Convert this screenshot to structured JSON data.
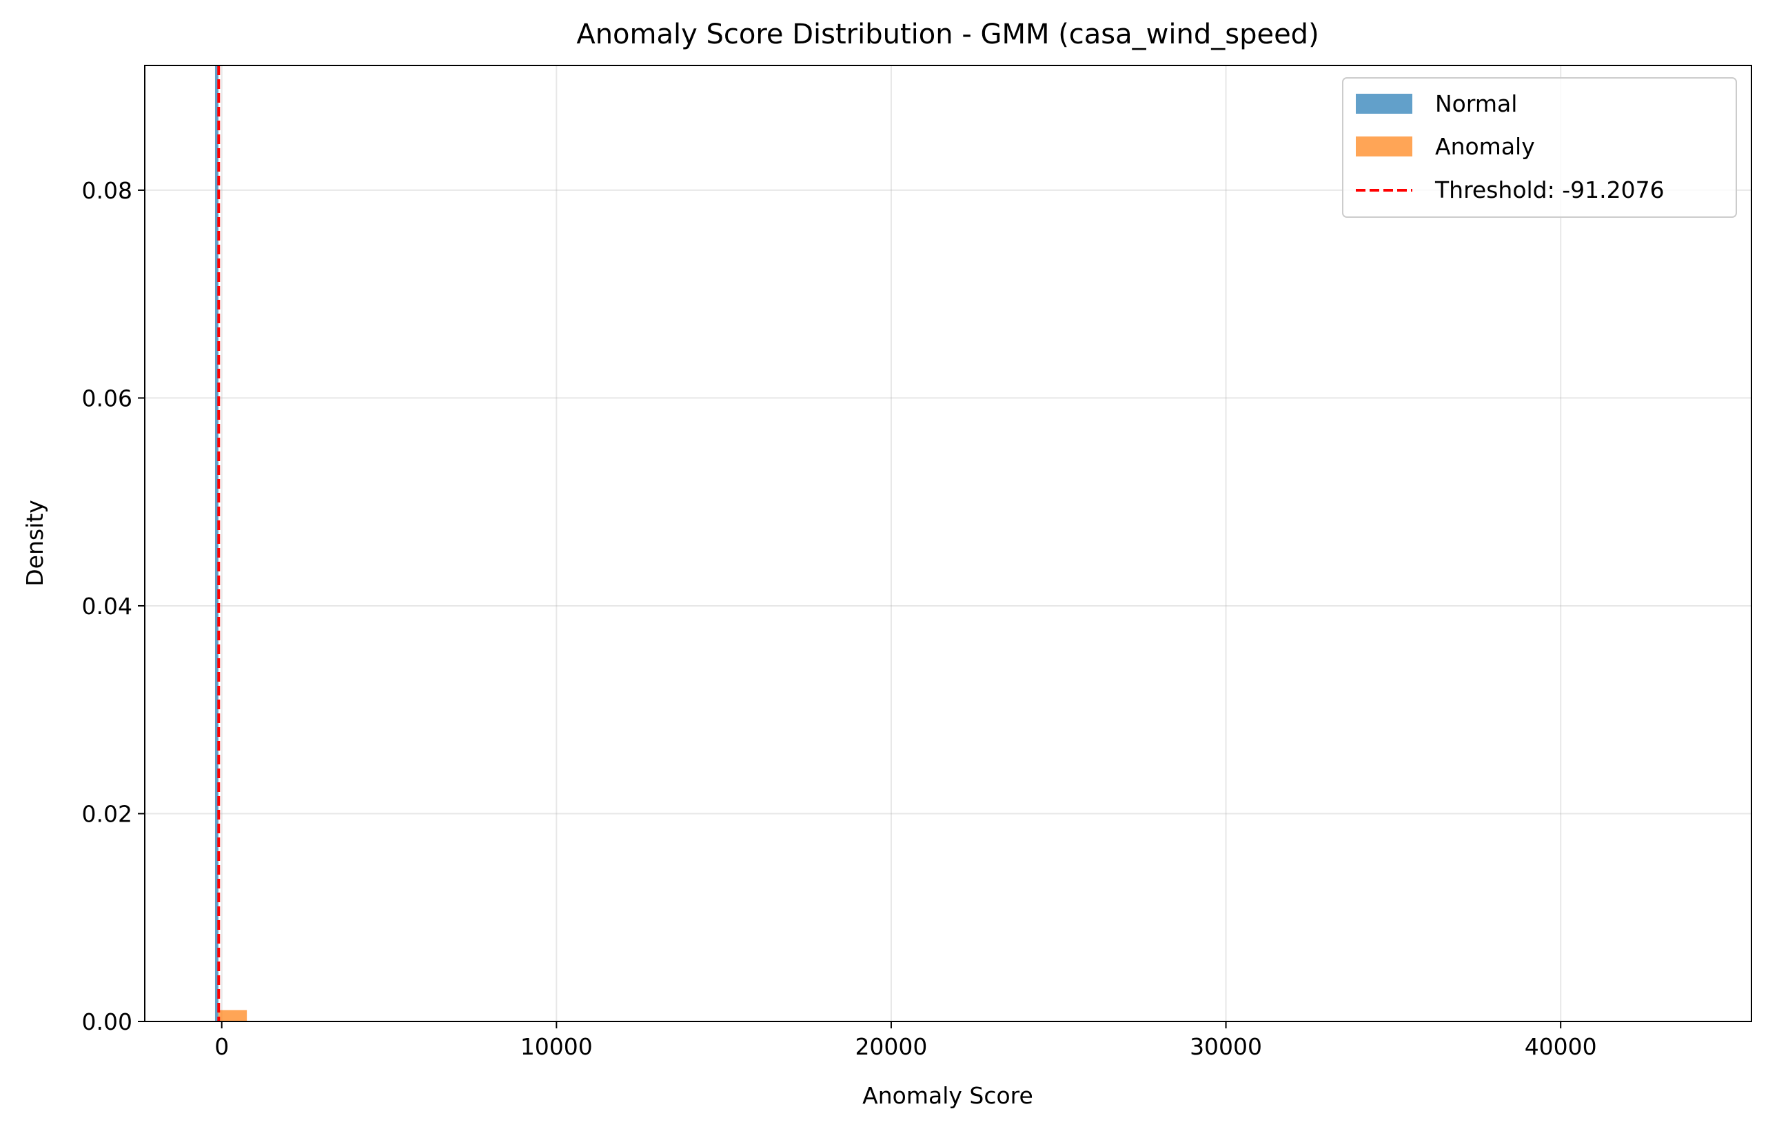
{
  "chart_data": {
    "type": "histogram",
    "title": "Anomaly Score Distribution - GMM (casa_wind_speed)",
    "xlabel": "Anomaly Score",
    "ylabel": "Density",
    "xlim": [
      -2300,
      45700
    ],
    "ylim": [
      0,
      0.092
    ],
    "x_ticks": [
      0,
      10000,
      20000,
      30000,
      40000
    ],
    "x_tick_labels": [
      "0",
      "10000",
      "20000",
      "30000",
      "40000"
    ],
    "y_ticks": [
      0.0,
      0.02,
      0.04,
      0.06,
      0.08
    ],
    "y_tick_labels": [
      "0.00",
      "0.02",
      "0.04",
      "0.06",
      "0.08"
    ],
    "grid": true,
    "legend_position": "top-right",
    "series": [
      {
        "name": "Normal",
        "kind": "bars",
        "color": "#1f77b4",
        "opacity": 0.7,
        "bars": [
          {
            "x0": -200,
            "x1": -100,
            "value": 0.092
          }
        ]
      },
      {
        "name": "Anomaly",
        "kind": "bars",
        "color": "#ff7f0e",
        "opacity": 0.7,
        "bars": [
          {
            "x0": -100,
            "x1": 750,
            "value": 0.0011
          }
        ]
      }
    ],
    "threshold": {
      "name": "Threshold: -91.2076",
      "value": -91.2076,
      "color": "#ff0000",
      "style": "dashed"
    }
  }
}
